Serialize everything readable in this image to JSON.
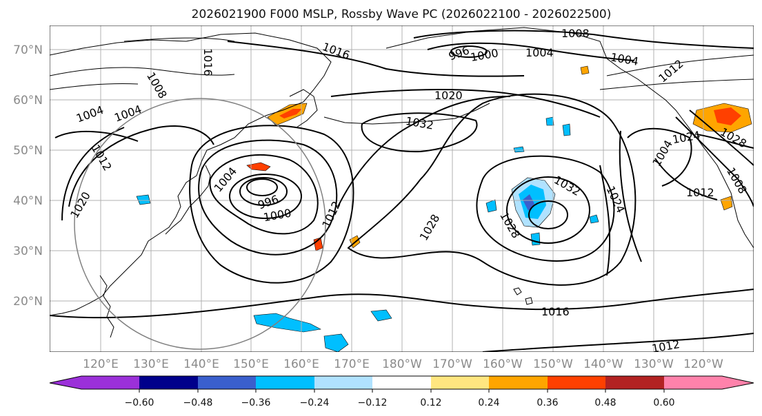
{
  "title": "2026021900 F000 MSLP, Rossby Wave PC (2026022100 - 2026022500)",
  "lat_ticks": [
    "70°N",
    "60°N",
    "50°N",
    "40°N",
    "30°N",
    "20°N"
  ],
  "lon_ticks": [
    "120°E",
    "130°E",
    "140°E",
    "150°E",
    "160°E",
    "170°E",
    "180°W",
    "170°W",
    "160°W",
    "150°W",
    "140°W",
    "130°W",
    "120°W"
  ],
  "contour_labels": [
    "1008",
    "1004",
    "996",
    "1000",
    "1016",
    "1004",
    "1012",
    "1020",
    "1032",
    "1008",
    "1004",
    "1016",
    "1004",
    "1004",
    "996",
    "1000",
    "1012",
    "1020",
    "1012",
    "1028",
    "1032",
    "1024",
    "1028",
    "1016",
    "1012",
    "1012",
    "1024",
    "1028",
    "1008",
    "1004"
  ],
  "colorbar": {
    "labels": [
      "−0.60",
      "−0.48",
      "−0.36",
      "−0.24",
      "−0.12",
      "0.12",
      "0.24",
      "0.36",
      "0.48",
      "0.60"
    ],
    "colors": [
      "#9b30d9",
      "#00008b",
      "#3a5fcd",
      "#00bfff",
      "#b0e2ff",
      "#ffffff",
      "#ffe680",
      "#ffa500",
      "#ff4000",
      "#b22222",
      "#ff82ab"
    ]
  },
  "colors": {
    "contour": "#000000",
    "grid": "#b0b0b0",
    "tick_label": "#8a8a8a",
    "circle": "#808080"
  }
}
